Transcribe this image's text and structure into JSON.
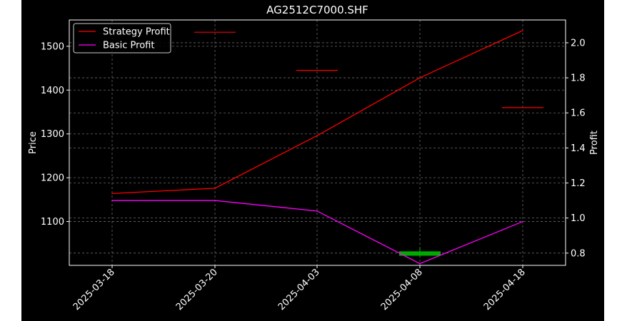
{
  "chart_data": {
    "type": "line",
    "title": "AG2512C7000.SHF",
    "xlabel": "",
    "ylabel_left": "Price",
    "ylabel_right": "Profit",
    "categories": [
      "2025-03-18",
      "2025-03-20",
      "2025-04-03",
      "2025-04-08",
      "2025-04-18"
    ],
    "ylim_left": [
      1000,
      1560
    ],
    "yticks_left": [
      1100,
      1200,
      1300,
      1400,
      1500
    ],
    "ylim_right": [
      0.73,
      2.13
    ],
    "yticks_right": [
      0.8,
      1.0,
      1.2,
      1.4,
      1.6,
      1.8,
      2.0
    ],
    "grid": true,
    "legend_position": "top-left",
    "series": [
      {
        "name": "Strategy Profit",
        "axis": "right",
        "color": "#ff0000",
        "values": [
          1.14,
          1.17,
          1.47,
          1.8,
          2.07
        ]
      },
      {
        "name": "Basic Profit",
        "axis": "right",
        "color": "#ff00ff",
        "values": [
          1.1,
          1.1,
          1.04,
          0.74,
          0.98
        ]
      }
    ],
    "price_markers": [
      {
        "x": "2025-03-20",
        "value": 1532,
        "color": "#ff0000"
      },
      {
        "x": "2025-04-03",
        "value": 1445,
        "color": "#ff0000"
      },
      {
        "x": "2025-04-18",
        "value": 1360,
        "color": "#ff0000"
      }
    ],
    "green_marker": {
      "x": "2025-04-08",
      "value_low": 1022,
      "value_high": 1032,
      "color": "#00aa00"
    }
  }
}
